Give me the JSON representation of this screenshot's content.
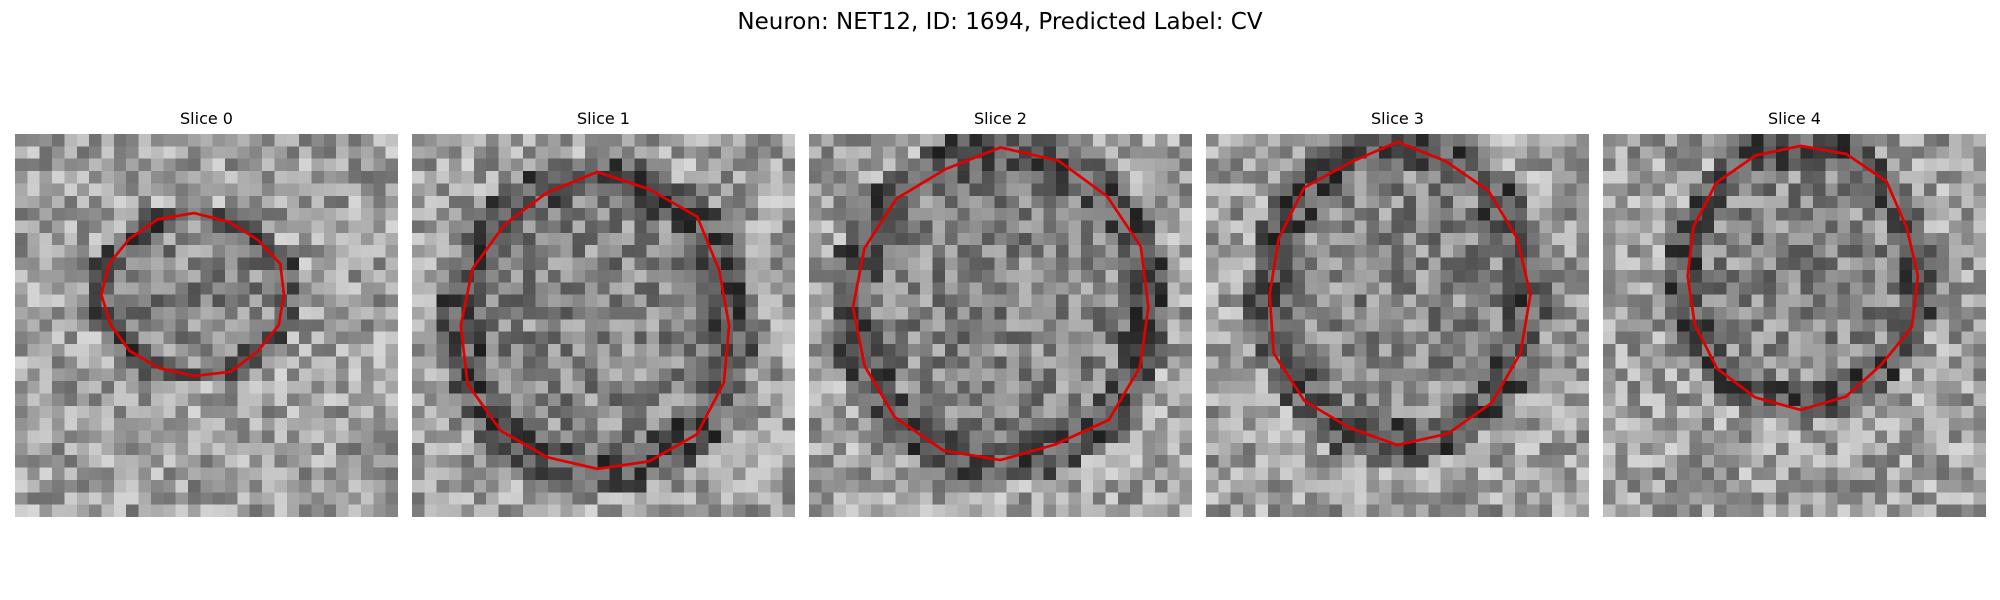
{
  "figure": {
    "title": "Neuron: NET12, ID: 1694, Predicted Label: CV",
    "outline_color": "#e00000"
  },
  "slices": [
    {
      "label": "Slice 0"
    },
    {
      "label": "Slice 1"
    },
    {
      "label": "Slice 2"
    },
    {
      "label": "Slice 3"
    },
    {
      "label": "Slice 4"
    }
  ]
}
